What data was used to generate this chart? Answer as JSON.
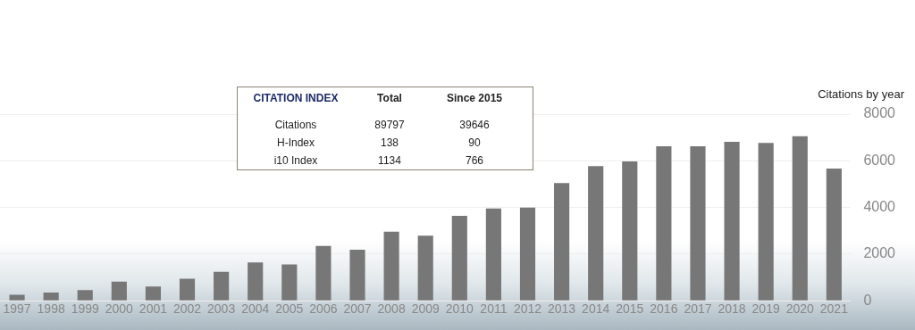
{
  "chart_data": {
    "type": "bar",
    "title": "Citations by year",
    "categories": [
      "1997",
      "1998",
      "1999",
      "2000",
      "2001",
      "2002",
      "2003",
      "2004",
      "2005",
      "2006",
      "2007",
      "2008",
      "2009",
      "2010",
      "2011",
      "2012",
      "2013",
      "2014",
      "2015",
      "2016",
      "2017",
      "2018",
      "2019",
      "2020",
      "2021"
    ],
    "values": [
      260,
      350,
      460,
      820,
      610,
      940,
      1240,
      1640,
      1560,
      2350,
      2190,
      2960,
      2790,
      3640,
      3960,
      3990,
      5050,
      5770,
      5970,
      6620,
      6620,
      6810,
      6770,
      7050,
      5670
    ],
    "color": "#777777",
    "ylim": [
      0,
      8000
    ],
    "yticks": [
      0,
      2000,
      4000,
      6000,
      8000
    ],
    "grid": "y",
    "annotations": [
      "CITATION INDEX",
      "Total",
      "Since 2015",
      "Citations",
      "89797",
      "39646",
      "H-Index",
      "138",
      "90",
      "i10 Index",
      "1134",
      "766"
    ]
  }
}
